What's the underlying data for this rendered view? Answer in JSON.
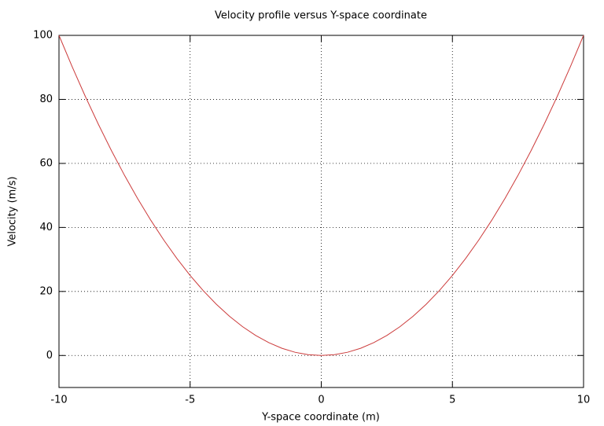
{
  "chart_data": {
    "type": "line",
    "title": "Velocity profile versus Y-space coordinate",
    "x_label": "Y-space coordinate (m)",
    "y_label": "Velocity (m/s)",
    "x": [
      -10,
      -9.5,
      -9,
      -8.5,
      -8,
      -7.5,
      -7,
      -6.5,
      -6,
      -5.5,
      -5,
      -4.5,
      -4,
      -3.5,
      -3,
      -2.5,
      -2,
      -1.5,
      -1,
      -0.5,
      0,
      0.5,
      1,
      1.5,
      2,
      2.5,
      3,
      3.5,
      4,
      4.5,
      5,
      5.5,
      6,
      6.5,
      7,
      7.5,
      8,
      8.5,
      9,
      9.5,
      10
    ],
    "series": [
      {
        "color": "#cc3b3b",
        "values": [
          100,
          90.25,
          81,
          72.25,
          64,
          56.25,
          49,
          42.25,
          36,
          30.25,
          25,
          20.25,
          16,
          12.25,
          9,
          6.25,
          4,
          2.25,
          1,
          0.25,
          0,
          0.25,
          1,
          2.25,
          4,
          6.25,
          9,
          12.25,
          16,
          20.25,
          25,
          30.25,
          36,
          42.25,
          49,
          56.25,
          64,
          72.25,
          81,
          90.25,
          100
        ]
      }
    ],
    "xlim": [
      -10,
      10
    ],
    "xticks": [
      -10,
      -5,
      0,
      5,
      10
    ],
    "ylim": [
      -10,
      100
    ],
    "yticks": [
      0,
      20,
      40,
      60,
      80,
      100
    ],
    "grid": true
  }
}
